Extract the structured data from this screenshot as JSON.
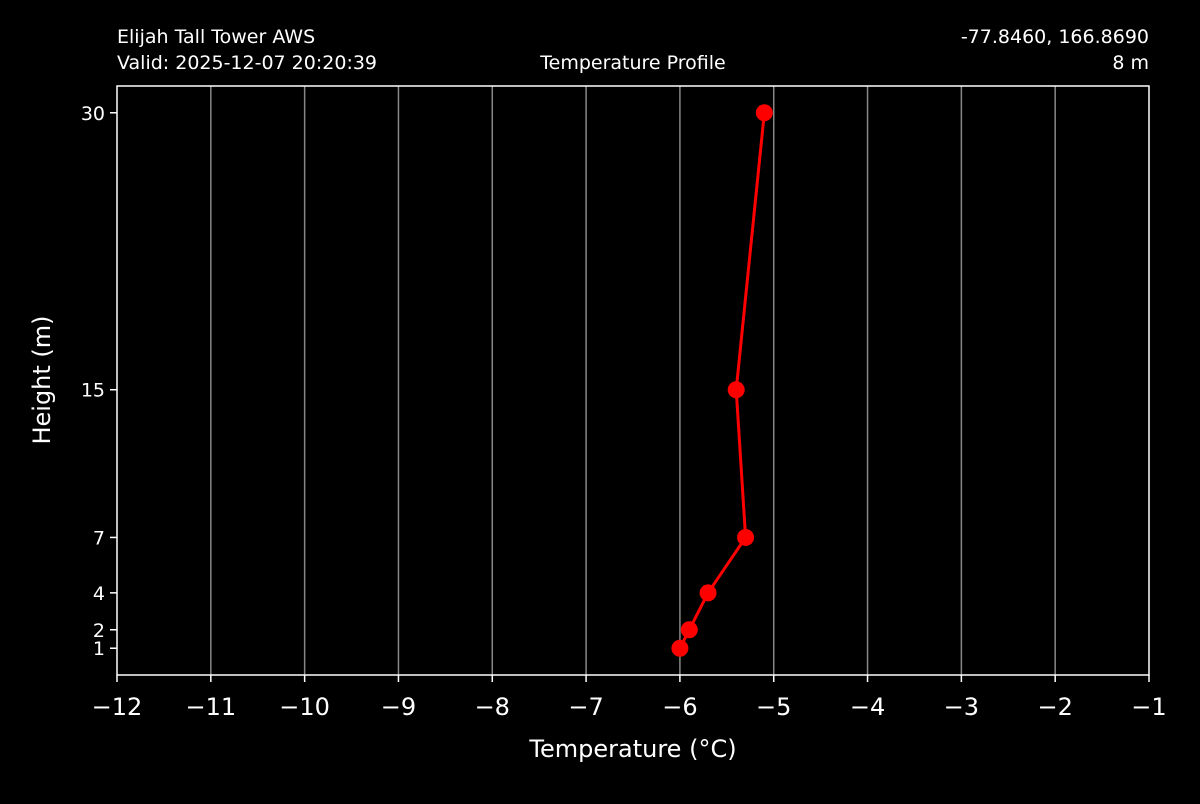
{
  "header": {
    "station": "Elijah Tall Tower AWS",
    "valid": "Valid: 2025-12-07 20:20:39",
    "title": "Temperature Profile",
    "coords": "-77.8460, 166.8690",
    "height_label": "8 m"
  },
  "colors": {
    "background": "#000000",
    "series": "#ff0000",
    "grid": "#888888",
    "axes": "#ffffff"
  },
  "chart_data": {
    "type": "line",
    "title": "Temperature Profile",
    "xlabel": "Temperature (°C)",
    "ylabel": "Height (m)",
    "xlim": [
      -12,
      -1
    ],
    "ylim": [
      -0.45,
      31.45
    ],
    "grid": "vertical",
    "x_ticks": [
      -12,
      -11,
      -10,
      -9,
      -8,
      -7,
      -6,
      -5,
      -4,
      -3,
      -2,
      -1
    ],
    "x_tick_labels": [
      "−12",
      "−11",
      "−10",
      "−9",
      "−8",
      "−7",
      "−6",
      "−5",
      "−4",
      "−3",
      "−2",
      "−1"
    ],
    "y_ticks": [
      1,
      2,
      4,
      7,
      15,
      30
    ],
    "y_tick_labels": [
      "1",
      "2",
      "4",
      "7",
      "15",
      "30"
    ],
    "series": [
      {
        "x": [
          -6.0,
          -5.9,
          -5.7,
          -5.3,
          -5.4,
          -5.1
        ],
        "y": [
          1,
          2,
          4,
          7,
          15,
          30
        ],
        "marker": "circle"
      }
    ]
  }
}
